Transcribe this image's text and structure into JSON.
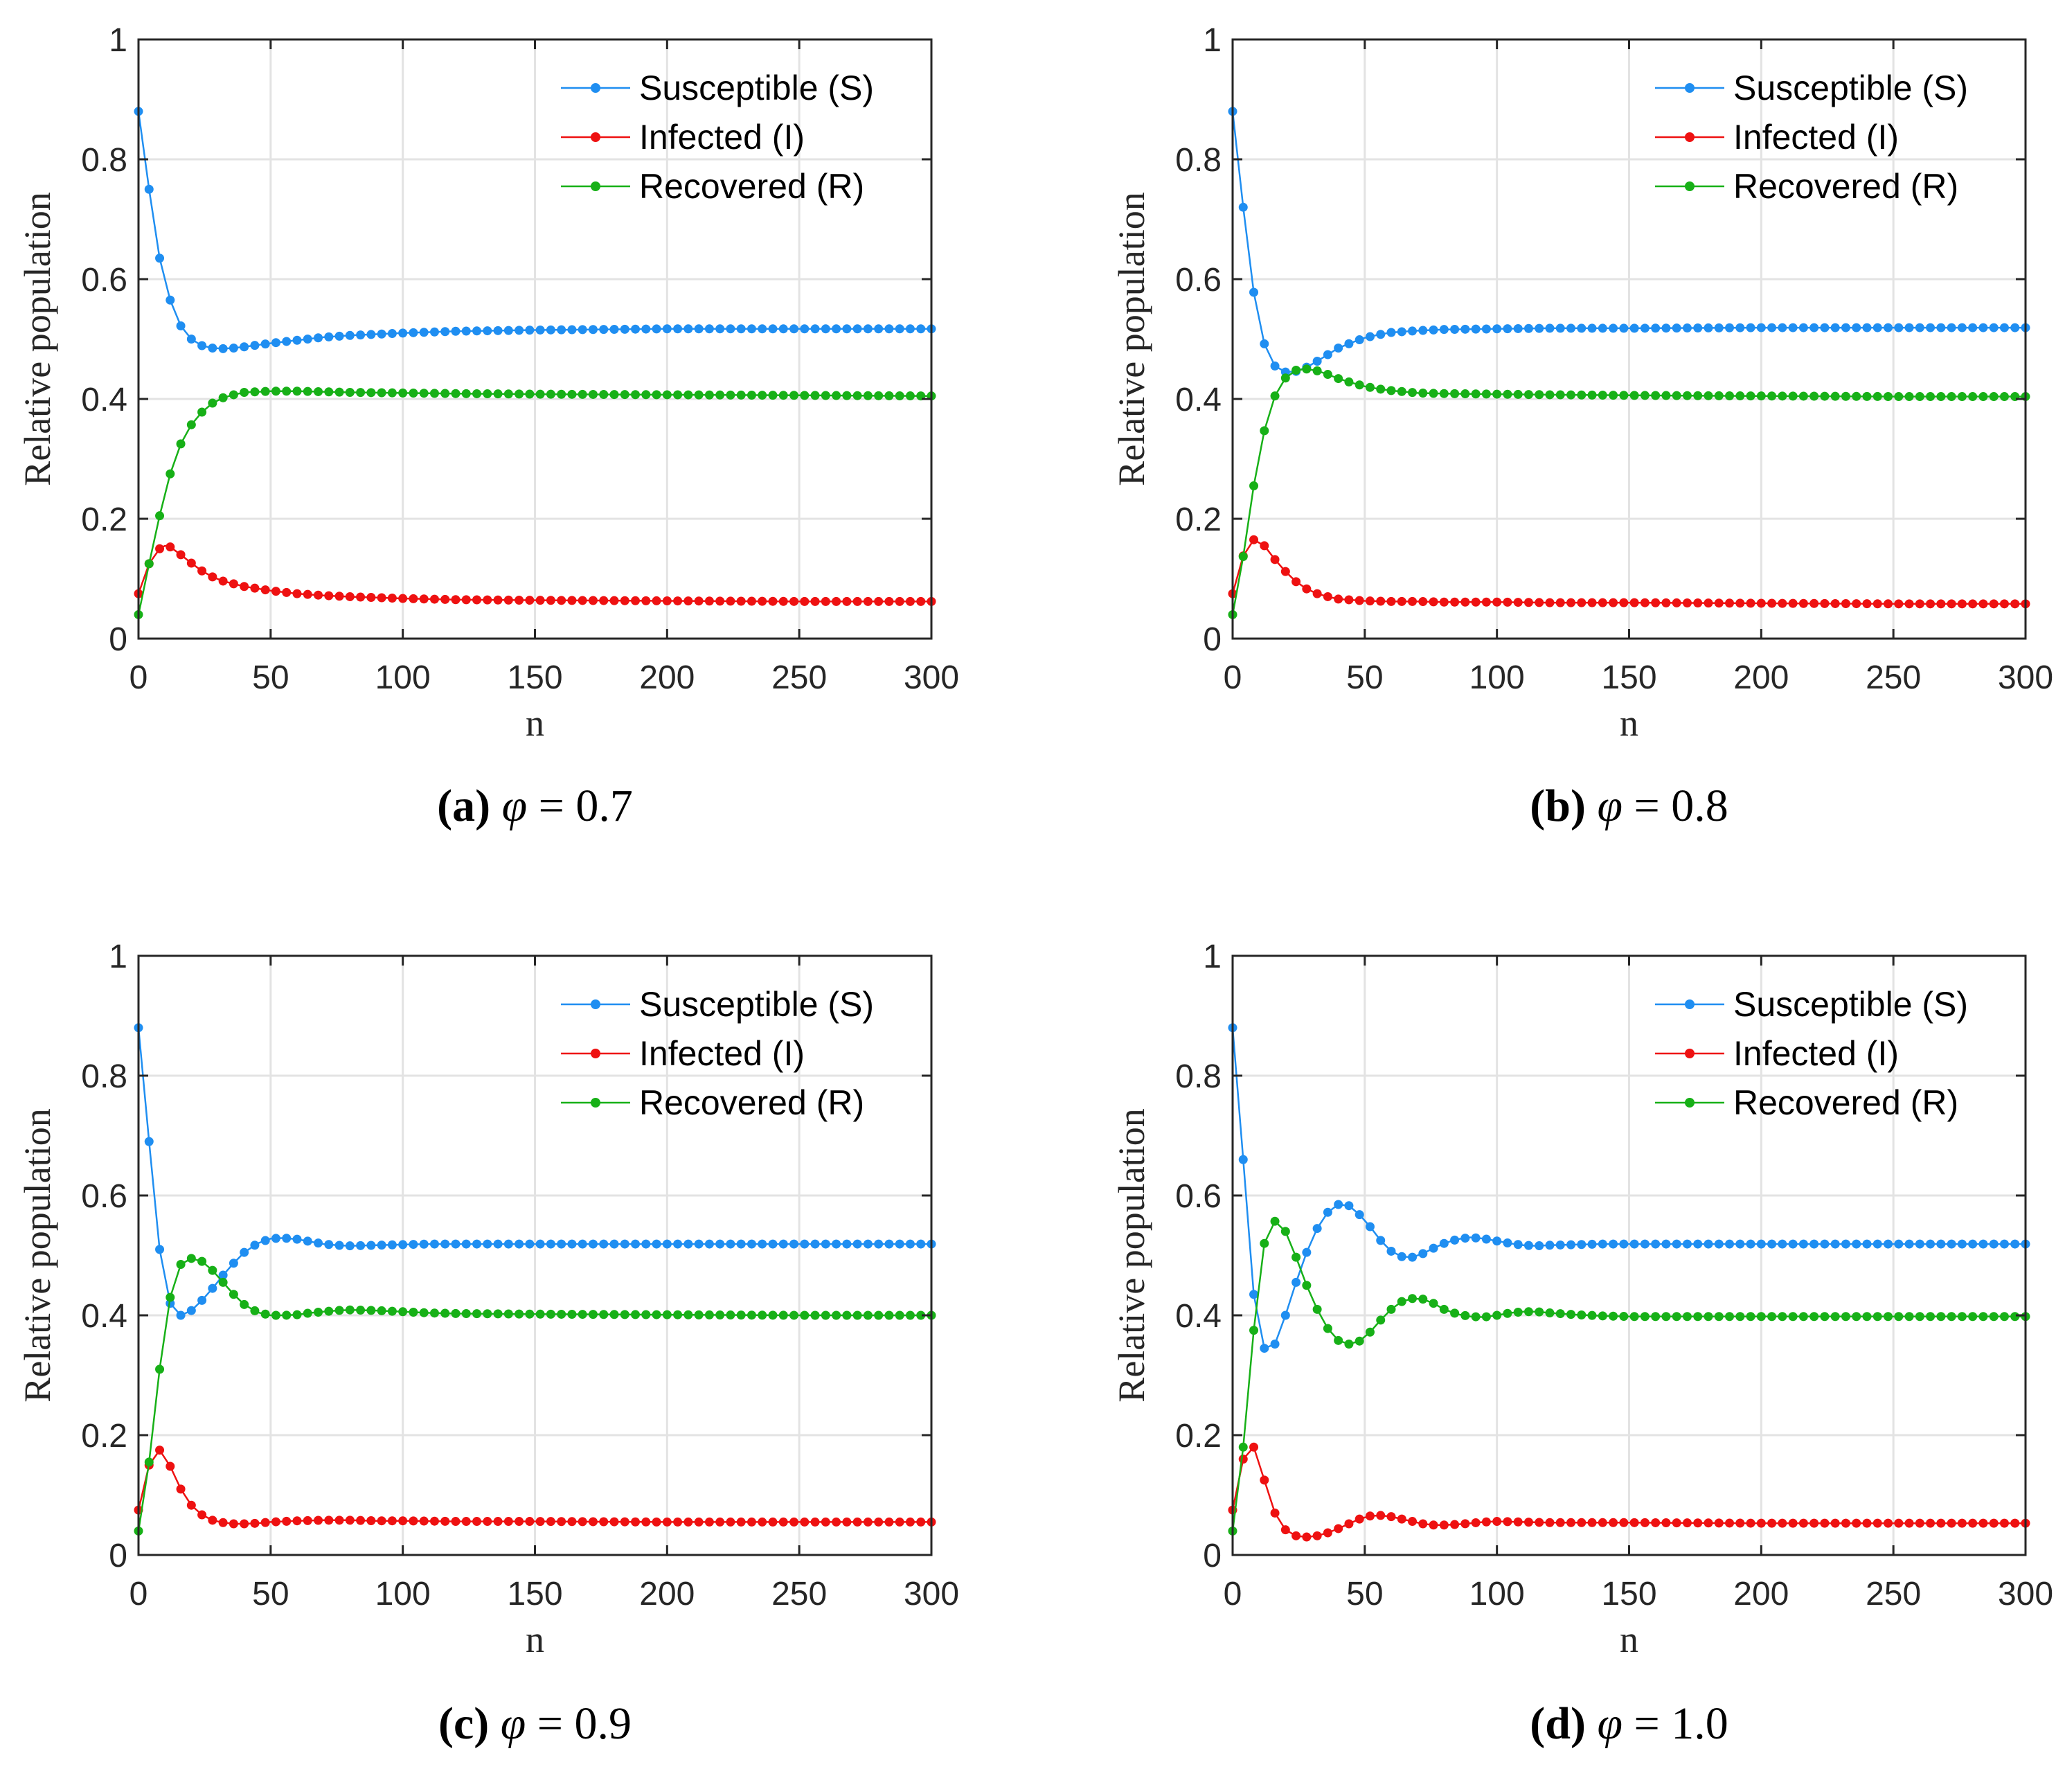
{
  "figure": {
    "legend": {
      "entries": [
        "Susceptible (S)",
        "Infected (I)",
        "Recovered (R)"
      ],
      "location": "top-right"
    },
    "colors": {
      "S": "#1f8ef1",
      "I": "#ee1111",
      "R": "#17b017",
      "grid": "#e3e3e3",
      "axis": "#262626"
    }
  },
  "chart_data": [
    {
      "type": "line",
      "panel": "a",
      "caption": {
        "label": "(a)",
        "symbol": "φ",
        "equals": "=",
        "value": "0.7"
      },
      "xlabel": "n",
      "ylabel": "Relative population",
      "xlim": [
        0,
        300
      ],
      "ylim": [
        0,
        1
      ],
      "xticks": [
        "0",
        "50",
        "100",
        "150",
        "200",
        "250",
        "300"
      ],
      "yticks": [
        "0",
        "0.2",
        "0.4",
        "0.6",
        "0.8",
        "1"
      ],
      "grid": true,
      "series": [
        {
          "name": "Susceptible (S)",
          "key": "S",
          "x": [
            0,
            4,
            8,
            12,
            16,
            20,
            24,
            28,
            32,
            36,
            40,
            50,
            60,
            70,
            80,
            100,
            120,
            150,
            200,
            250,
            300
          ],
          "values": [
            0.88,
            0.75,
            0.635,
            0.565,
            0.522,
            0.5,
            0.489,
            0.485,
            0.484,
            0.485,
            0.487,
            0.493,
            0.498,
            0.503,
            0.506,
            0.51,
            0.513,
            0.515,
            0.517,
            0.517,
            0.517
          ]
        },
        {
          "name": "Infected (I)",
          "key": "I",
          "x": [
            0,
            4,
            8,
            10,
            12,
            16,
            20,
            24,
            28,
            32,
            40,
            50,
            60,
            70,
            80,
            100,
            120,
            150,
            200,
            250,
            300
          ],
          "values": [
            0.075,
            0.125,
            0.15,
            0.155,
            0.153,
            0.14,
            0.126,
            0.113,
            0.103,
            0.096,
            0.087,
            0.08,
            0.075,
            0.072,
            0.07,
            0.067,
            0.065,
            0.064,
            0.063,
            0.062,
            0.062
          ]
        },
        {
          "name": "Recovered (R)",
          "key": "R",
          "x": [
            0,
            4,
            8,
            12,
            16,
            20,
            24,
            28,
            32,
            36,
            40,
            50,
            60,
            70,
            80,
            100,
            120,
            150,
            200,
            250,
            300
          ],
          "values": [
            0.04,
            0.125,
            0.205,
            0.275,
            0.325,
            0.357,
            0.378,
            0.393,
            0.402,
            0.407,
            0.411,
            0.413,
            0.413,
            0.412,
            0.411,
            0.41,
            0.409,
            0.408,
            0.407,
            0.406,
            0.405
          ]
        }
      ]
    },
    {
      "type": "line",
      "panel": "b",
      "caption": {
        "label": "(b)",
        "symbol": "φ",
        "equals": "=",
        "value": "0.8"
      },
      "xlabel": "n",
      "ylabel": "Relative population",
      "xlim": [
        0,
        300
      ],
      "ylim": [
        0,
        1
      ],
      "xticks": [
        "0",
        "50",
        "100",
        "150",
        "200",
        "250",
        "300"
      ],
      "yticks": [
        "0",
        "0.2",
        "0.4",
        "0.6",
        "0.8",
        "1"
      ],
      "grid": true,
      "series": [
        {
          "name": "Susceptible (S)",
          "key": "S",
          "x": [
            0,
            4,
            8,
            12,
            16,
            20,
            24,
            28,
            32,
            36,
            40,
            45,
            50,
            55,
            60,
            70,
            80,
            100,
            120,
            150,
            200,
            250,
            300
          ],
          "values": [
            0.88,
            0.72,
            0.578,
            0.492,
            0.455,
            0.445,
            0.446,
            0.453,
            0.463,
            0.474,
            0.485,
            0.494,
            0.502,
            0.507,
            0.511,
            0.514,
            0.516,
            0.517,
            0.518,
            0.518,
            0.519,
            0.519,
            0.519
          ]
        },
        {
          "name": "Infected (I)",
          "key": "I",
          "x": [
            0,
            4,
            8,
            12,
            16,
            20,
            24,
            28,
            32,
            36,
            40,
            50,
            60,
            70,
            80,
            100,
            120,
            150,
            200,
            250,
            300
          ],
          "values": [
            0.075,
            0.138,
            0.165,
            0.155,
            0.132,
            0.112,
            0.095,
            0.083,
            0.075,
            0.07,
            0.066,
            0.063,
            0.062,
            0.062,
            0.061,
            0.061,
            0.06,
            0.06,
            0.059,
            0.058,
            0.058
          ]
        },
        {
          "name": "Recovered (R)",
          "key": "R",
          "x": [
            0,
            4,
            8,
            12,
            16,
            20,
            24,
            28,
            32,
            36,
            40,
            45,
            50,
            55,
            60,
            70,
            80,
            100,
            120,
            150,
            200,
            250,
            300
          ],
          "values": [
            0.04,
            0.137,
            0.255,
            0.347,
            0.405,
            0.435,
            0.448,
            0.45,
            0.447,
            0.441,
            0.434,
            0.427,
            0.421,
            0.417,
            0.414,
            0.41,
            0.409,
            0.408,
            0.407,
            0.406,
            0.405,
            0.404,
            0.404
          ]
        }
      ]
    },
    {
      "type": "line",
      "panel": "c",
      "caption": {
        "label": "(c)",
        "symbol": "φ",
        "equals": "=",
        "value": "0.9"
      },
      "xlabel": "n",
      "ylabel": "Relative population",
      "xlim": [
        0,
        300
      ],
      "ylim": [
        0,
        1
      ],
      "xticks": [
        "0",
        "50",
        "100",
        "150",
        "200",
        "250",
        "300"
      ],
      "yticks": [
        "0",
        "0.2",
        "0.4",
        "0.6",
        "0.8",
        "1"
      ],
      "grid": true,
      "series": [
        {
          "name": "Susceptible (S)",
          "key": "S",
          "x": [
            0,
            4,
            8,
            12,
            16,
            20,
            24,
            28,
            32,
            36,
            40,
            45,
            50,
            55,
            60,
            65,
            70,
            75,
            80,
            90,
            100,
            110,
            120,
            150,
            200,
            250,
            300
          ],
          "values": [
            0.88,
            0.69,
            0.51,
            0.42,
            0.4,
            0.408,
            0.425,
            0.445,
            0.467,
            0.487,
            0.505,
            0.52,
            0.528,
            0.529,
            0.527,
            0.523,
            0.519,
            0.517,
            0.516,
            0.517,
            0.518,
            0.519,
            0.519,
            0.519,
            0.519,
            0.519,
            0.519
          ]
        },
        {
          "name": "Infected (I)",
          "key": "I",
          "x": [
            0,
            4,
            8,
            12,
            16,
            20,
            24,
            28,
            32,
            36,
            40,
            45,
            50,
            55,
            60,
            70,
            80,
            90,
            100,
            120,
            150,
            200,
            250,
            300
          ],
          "values": [
            0.075,
            0.15,
            0.175,
            0.148,
            0.11,
            0.083,
            0.067,
            0.058,
            0.054,
            0.052,
            0.052,
            0.053,
            0.055,
            0.056,
            0.057,
            0.058,
            0.058,
            0.057,
            0.057,
            0.056,
            0.056,
            0.055,
            0.055,
            0.055
          ]
        },
        {
          "name": "Recovered (R)",
          "key": "R",
          "x": [
            0,
            4,
            8,
            12,
            16,
            20,
            24,
            28,
            32,
            36,
            40,
            45,
            50,
            55,
            60,
            65,
            70,
            75,
            80,
            90,
            100,
            110,
            120,
            150,
            200,
            250,
            300
          ],
          "values": [
            0.04,
            0.155,
            0.31,
            0.43,
            0.485,
            0.495,
            0.49,
            0.475,
            0.455,
            0.435,
            0.418,
            0.405,
            0.4,
            0.4,
            0.401,
            0.404,
            0.406,
            0.408,
            0.409,
            0.408,
            0.406,
            0.404,
            0.403,
            0.402,
            0.401,
            0.4,
            0.4
          ]
        }
      ]
    },
    {
      "type": "line",
      "panel": "d",
      "caption": {
        "label": "(d)",
        "symbol": "φ",
        "equals": "=",
        "value": "1.0"
      },
      "xlabel": "n",
      "ylabel": "Relative population",
      "xlim": [
        0,
        300
      ],
      "ylim": [
        0,
        1
      ],
      "xticks": [
        "0",
        "50",
        "100",
        "150",
        "200",
        "250",
        "300"
      ],
      "yticks": [
        "0",
        "0.2",
        "0.4",
        "0.6",
        "0.8",
        "1"
      ],
      "grid": true,
      "series": [
        {
          "name": "Susceptible (S)",
          "key": "S",
          "x": [
            0,
            4,
            8,
            12,
            16,
            20,
            24,
            28,
            32,
            36,
            40,
            44,
            48,
            52,
            56,
            60,
            64,
            68,
            72,
            76,
            80,
            85,
            90,
            95,
            100,
            105,
            110,
            115,
            120,
            130,
            140,
            150,
            200,
            250,
            300
          ],
          "values": [
            0.88,
            0.66,
            0.435,
            0.345,
            0.352,
            0.4,
            0.455,
            0.505,
            0.545,
            0.572,
            0.585,
            0.583,
            0.568,
            0.548,
            0.525,
            0.507,
            0.498,
            0.497,
            0.503,
            0.512,
            0.52,
            0.527,
            0.53,
            0.528,
            0.524,
            0.52,
            0.517,
            0.516,
            0.517,
            0.518,
            0.519,
            0.519,
            0.519,
            0.519,
            0.519
          ]
        },
        {
          "name": "Infected (I)",
          "key": "I",
          "x": [
            0,
            4,
            8,
            12,
            16,
            20,
            24,
            28,
            32,
            36,
            40,
            44,
            48,
            52,
            56,
            60,
            64,
            68,
            72,
            76,
            80,
            85,
            90,
            95,
            100,
            110,
            120,
            130,
            150,
            200,
            250,
            300
          ],
          "values": [
            0.075,
            0.16,
            0.18,
            0.125,
            0.07,
            0.042,
            0.032,
            0.03,
            0.032,
            0.037,
            0.044,
            0.052,
            0.06,
            0.065,
            0.066,
            0.064,
            0.06,
            0.056,
            0.052,
            0.05,
            0.05,
            0.051,
            0.053,
            0.055,
            0.056,
            0.055,
            0.054,
            0.054,
            0.054,
            0.053,
            0.053,
            0.053
          ]
        },
        {
          "name": "Recovered (R)",
          "key": "R",
          "x": [
            0,
            4,
            8,
            12,
            16,
            20,
            24,
            28,
            32,
            36,
            40,
            44,
            48,
            52,
            56,
            60,
            64,
            68,
            72,
            76,
            80,
            85,
            90,
            95,
            100,
            105,
            110,
            115,
            120,
            130,
            140,
            150,
            200,
            250,
            300
          ],
          "values": [
            0.04,
            0.18,
            0.375,
            0.52,
            0.557,
            0.54,
            0.497,
            0.45,
            0.41,
            0.378,
            0.358,
            0.352,
            0.357,
            0.372,
            0.392,
            0.41,
            0.423,
            0.428,
            0.427,
            0.42,
            0.41,
            0.402,
            0.398,
            0.397,
            0.4,
            0.404,
            0.406,
            0.406,
            0.404,
            0.401,
            0.399,
            0.398,
            0.398,
            0.398,
            0.398
          ]
        }
      ]
    }
  ]
}
